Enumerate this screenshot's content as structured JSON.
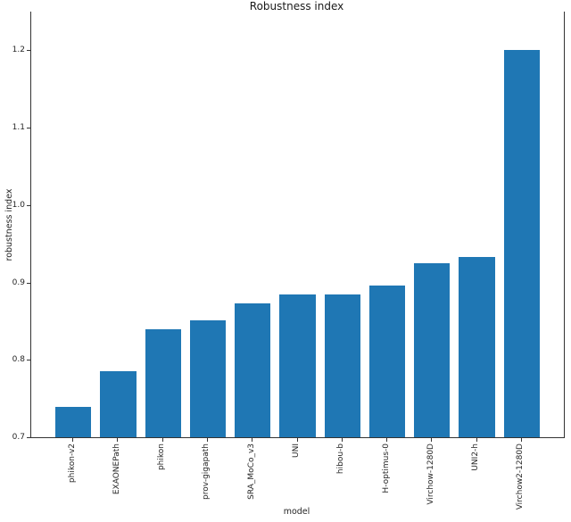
{
  "chart_data": {
    "type": "bar",
    "title": "Robustness index",
    "xlabel": "model",
    "ylabel": "robustness index",
    "categories": [
      "phikon-v2",
      "EXAONEPath",
      "phikon",
      "prov-gigapath",
      "SRA_MoCo_v3",
      "UNI",
      "hibou-b",
      "H-optimus-0",
      "Virchow-1280D",
      "UNI2-h",
      "Virchow2-1280D"
    ],
    "values": [
      0.739,
      0.785,
      0.84,
      0.851,
      0.873,
      0.884,
      0.885,
      0.896,
      0.925,
      0.933,
      1.2
    ],
    "yticks": [
      0.7,
      0.8,
      0.9,
      1.0,
      1.1,
      1.2
    ],
    "ylim": [
      0.7,
      1.25
    ],
    "bar_color": "#1f77b4",
    "grid": false,
    "legend_position": "none"
  }
}
